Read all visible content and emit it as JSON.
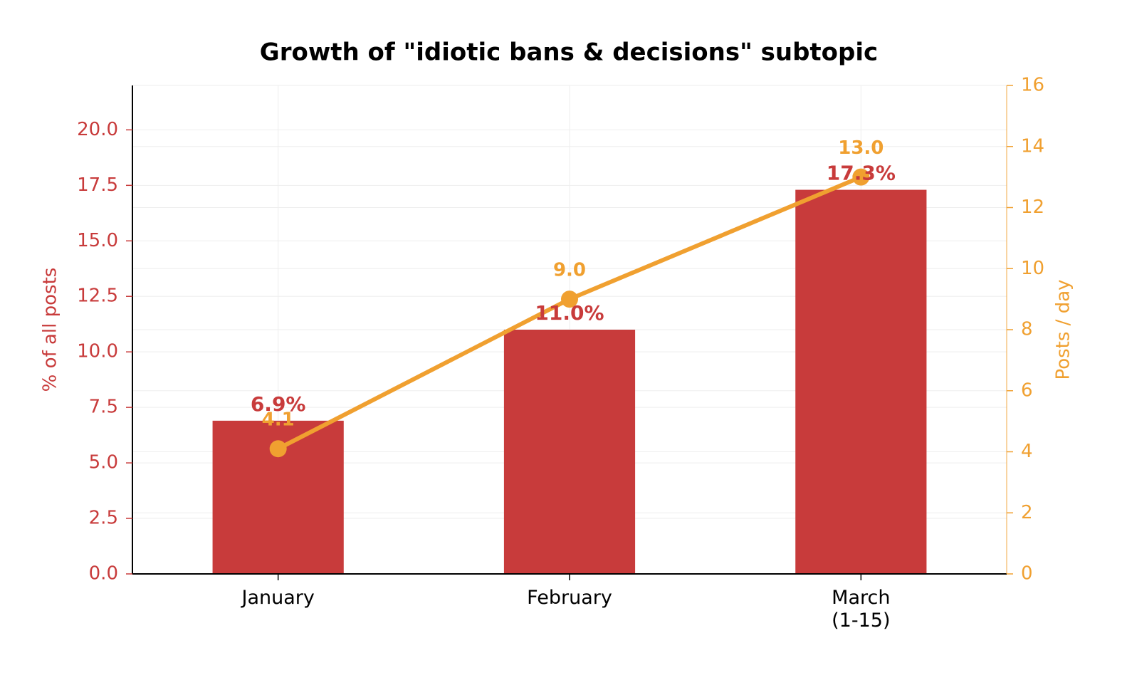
{
  "chart_data": {
    "type": "bar",
    "title": "Growth of \"idiotic bans & decisions\" subtopic",
    "categories": [
      "January",
      "February",
      "March\n(1-15)"
    ],
    "series": [
      {
        "type": "bar",
        "axis": "left",
        "values": [
          6.9,
          11.0,
          17.3
        ],
        "labels": [
          "6.9%",
          "11.0%",
          "17.3%"
        ],
        "color": "#c83b3b"
      },
      {
        "type": "line",
        "axis": "right",
        "values": [
          4.1,
          9.0,
          13.0
        ],
        "labels": [
          "4.1",
          "9.0",
          "13.0"
        ],
        "color": "#f0a030",
        "marker": "circle"
      }
    ],
    "ylabel": "% of all posts",
    "ylim": [
      0,
      22
    ],
    "yticks": [
      0.0,
      2.5,
      5.0,
      7.5,
      10.0,
      12.5,
      15.0,
      17.5,
      20.0
    ],
    "ytick_labels": [
      "0.0",
      "2.5",
      "5.0",
      "7.5",
      "10.0",
      "12.5",
      "15.0",
      "17.5",
      "20.0"
    ],
    "y2label": "Posts / day",
    "y2lim": [
      0,
      16
    ],
    "y2ticks": [
      0,
      2,
      4,
      6,
      8,
      10,
      12,
      14,
      16
    ],
    "y2tick_labels": [
      "0",
      "2",
      "4",
      "6",
      "8",
      "10",
      "12",
      "14",
      "16"
    ],
    "grid": true,
    "legend": "none",
    "colors": {
      "left_axis": "#c83b3b",
      "right_axis": "#f0a030",
      "axis_spine": "#000000",
      "grid": "#eeeeee",
      "text": "#000000"
    }
  }
}
